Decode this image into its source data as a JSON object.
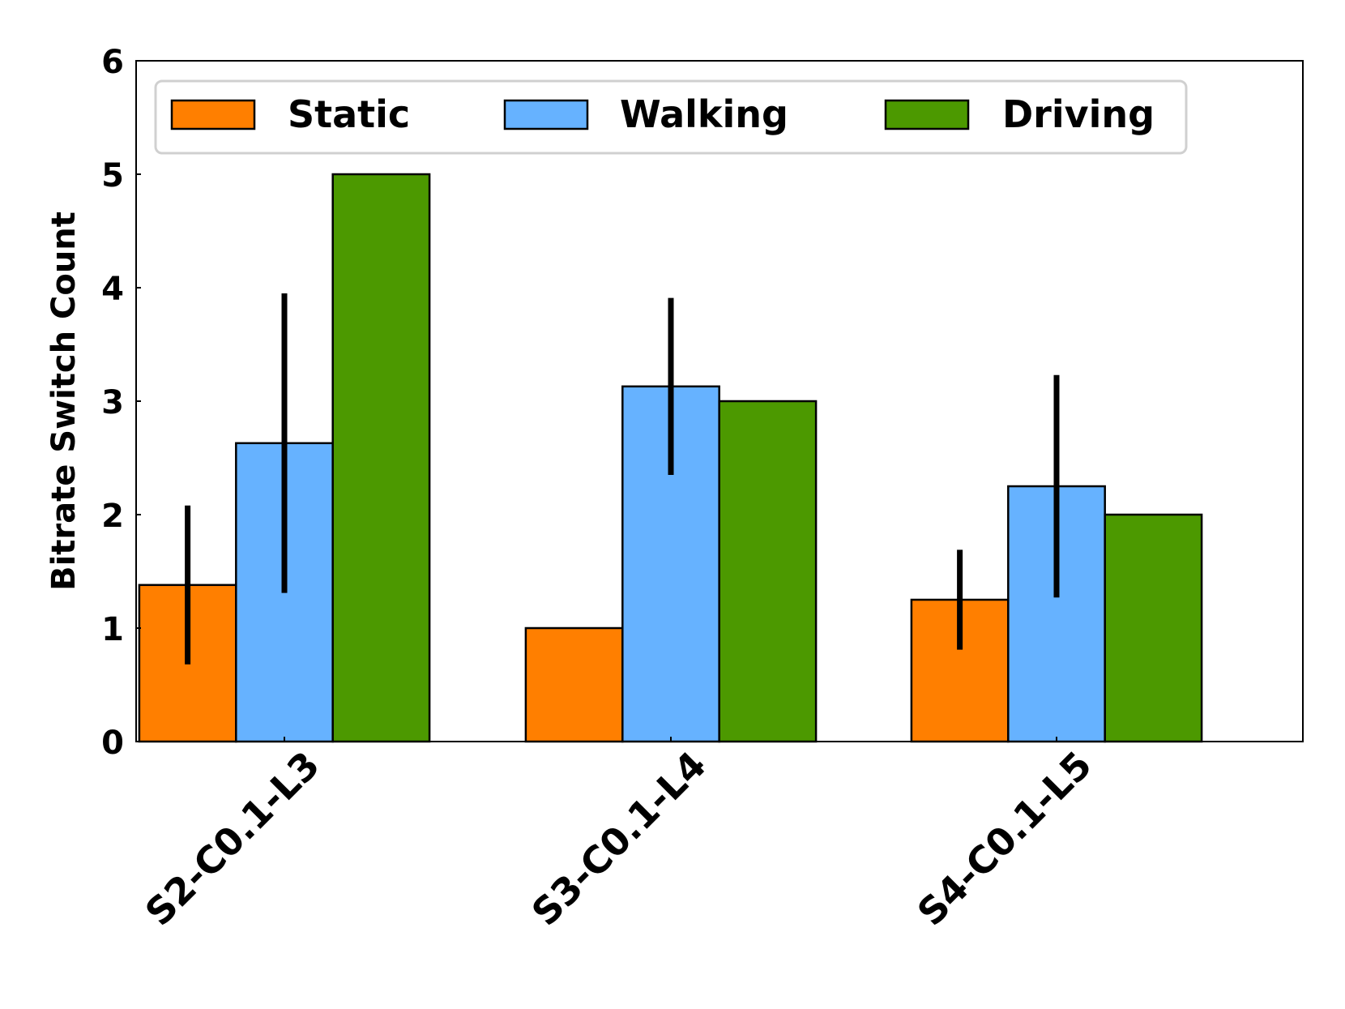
{
  "chart_data": {
    "type": "bar",
    "title": "",
    "xlabel": "",
    "ylabel": "Bitrate Switch Count",
    "ylim": [
      0,
      6
    ],
    "yticks": [
      "0",
      "1",
      "2",
      "3",
      "4",
      "5",
      "6"
    ],
    "categories": [
      "S2-C0.1-L3",
      "S3-C0.1-L4",
      "S4-C0.1-L5"
    ],
    "series": [
      {
        "name": "Static",
        "color": "#ff7f00",
        "values": [
          1.38,
          1.0,
          1.25
        ],
        "errors": [
          0.7,
          null,
          0.44
        ]
      },
      {
        "name": "Walking",
        "color": "#66b2ff",
        "values": [
          2.63,
          3.13,
          2.25
        ],
        "errors": [
          1.32,
          0.78,
          0.98
        ]
      },
      {
        "name": "Driving",
        "color": "#4c9900",
        "values": [
          5.0,
          3.0,
          2.0
        ],
        "errors": [
          null,
          null,
          null
        ]
      }
    ],
    "legend_position": "top",
    "grid": false
  }
}
